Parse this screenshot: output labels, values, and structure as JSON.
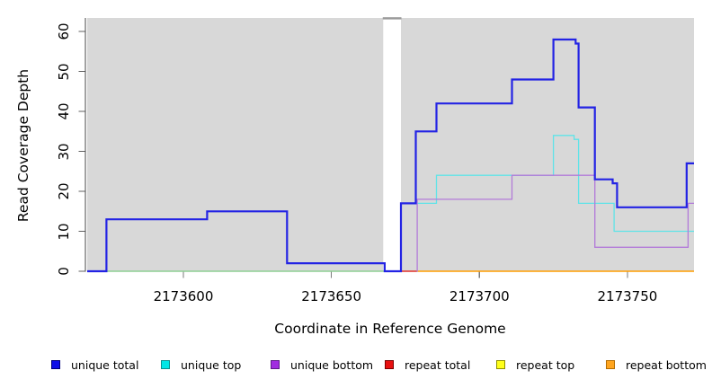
{
  "figure": {
    "background": "#ffffff",
    "plot_bg": "#d8d8d8",
    "axis_line_color": "#444444",
    "tick_color": "#7a7a7a",
    "text_color": "#000000"
  },
  "chart_data": {
    "type": "line",
    "step": "after",
    "title": "",
    "xlabel": "Coordinate in Reference Genome",
    "ylabel": "Read Coverage Depth",
    "xlim": [
      2173567.5,
      2173772.5
    ],
    "ylim": [
      0,
      63.4
    ],
    "grid": false,
    "legend_position": "bottom",
    "x_ticks": [
      {
        "value": 2173600,
        "label": "2173600"
      },
      {
        "value": 2173650,
        "label": "2173650"
      },
      {
        "value": 2173700,
        "label": "2173700"
      },
      {
        "value": 2173750,
        "label": "2173750"
      }
    ],
    "y_ticks": [
      {
        "value": 0,
        "label": "0"
      },
      {
        "value": 10,
        "label": "10"
      },
      {
        "value": 20,
        "label": "20"
      },
      {
        "value": 30,
        "label": "30"
      },
      {
        "value": 40,
        "label": "40"
      },
      {
        "value": 50,
        "label": "50"
      },
      {
        "value": 60,
        "label": "60"
      }
    ],
    "gap_band": {
      "x0": 2173667.5,
      "x1": 2173673.5,
      "fill": "#ffffff",
      "cap_color": "#999999"
    },
    "series": [
      {
        "name": "unique top",
        "color": "#5fe3e8",
        "width": 1.3,
        "points": [
          [
            2173673.5,
            17
          ],
          [
            2173685.5,
            24
          ],
          [
            2173725,
            34
          ],
          [
            2173732,
            33
          ],
          [
            2173733.5,
            17
          ],
          [
            2173745.5,
            10
          ],
          [
            2173772.5,
            10
          ]
        ]
      },
      {
        "name": "unique bottom",
        "color": "#b27ad9",
        "width": 1.3,
        "points": [
          [
            2173678.8,
            0
          ],
          [
            2173679,
            18
          ],
          [
            2173711,
            24
          ],
          [
            2173739,
            6
          ],
          [
            2173770.5,
            17
          ],
          [
            2173772.5,
            17
          ]
        ]
      },
      {
        "name": "unique total",
        "color": "#2323e4",
        "width": 2.2,
        "points": [
          [
            2173567.5,
            0
          ],
          [
            2173574,
            13
          ],
          [
            2173608,
            15
          ],
          [
            2173635,
            2
          ],
          [
            2173668,
            0
          ],
          [
            2173673.5,
            17
          ],
          [
            2173678.5,
            35
          ],
          [
            2173685.5,
            42
          ],
          [
            2173711,
            48
          ],
          [
            2173725,
            58
          ],
          [
            2173732.5,
            57
          ],
          [
            2173733.5,
            41
          ],
          [
            2173739,
            23
          ],
          [
            2173745,
            22
          ],
          [
            2173746.5,
            16
          ],
          [
            2173770,
            27
          ],
          [
            2173772.5,
            27
          ]
        ]
      }
    ],
    "zero_lines": [
      {
        "name": "zero baseline left",
        "color": "#8ecf93",
        "width": 1.4,
        "y": 0,
        "x0": 2173567.5,
        "x1": 2173668
      },
      {
        "name": "repeat total",
        "color": "#e03028",
        "width": 1.5,
        "y": 0,
        "x0": 2173673.5,
        "x1": 2173679
      },
      {
        "name": "repeat bottom",
        "color": "#ff9e00",
        "width": 1.6,
        "y": 0,
        "x0": 2173679,
        "x1": 2173772.5
      }
    ]
  },
  "legend": {
    "items": [
      {
        "label": "unique total",
        "fill": "#0f0fe8",
        "border": "#00007a"
      },
      {
        "label": "unique top",
        "fill": "#00e6e6",
        "border": "#0b8f8f"
      },
      {
        "label": "unique bottom",
        "fill": "#a12ce0",
        "border": "#5c1a86"
      },
      {
        "label": "repeat total",
        "fill": "#e81010",
        "border": "#7a0000"
      },
      {
        "label": "repeat top",
        "fill": "#ffff1a",
        "border": "#8f8f00"
      },
      {
        "label": "repeat bottom",
        "fill": "#ffa51f",
        "border": "#b36b00"
      }
    ]
  }
}
